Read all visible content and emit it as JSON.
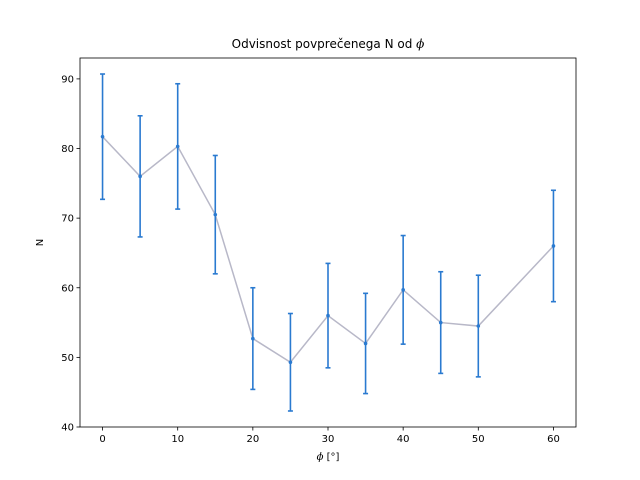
{
  "chart_data": {
    "type": "line",
    "title": "Odvisnost povprečenega N od",
    "title_symbol": "ϕ",
    "xlabel_symbol": "ϕ",
    "xlabel_unit": " [°]",
    "ylabel": "N",
    "xlim": [
      -3,
      63
    ],
    "ylim": [
      40,
      93
    ],
    "xticks": [
      0,
      10,
      20,
      30,
      40,
      50,
      60
    ],
    "yticks": [
      40,
      50,
      60,
      70,
      80,
      90
    ],
    "grid": false,
    "series": [
      {
        "x": [
          0,
          5,
          10,
          15,
          20,
          25,
          30,
          35,
          40,
          45,
          50,
          60
        ],
        "y": [
          81.7,
          76.0,
          80.3,
          70.5,
          52.7,
          49.3,
          56.0,
          52.0,
          59.7,
          55.0,
          54.5,
          66.0
        ],
        "yerr": [
          9.0,
          8.7,
          9.0,
          8.5,
          7.3,
          7.0,
          7.5,
          7.2,
          7.8,
          7.3,
          7.3,
          8.0
        ],
        "line_color": "#b8b8c8",
        "errorbar_color": "#2a7ad0"
      }
    ]
  }
}
